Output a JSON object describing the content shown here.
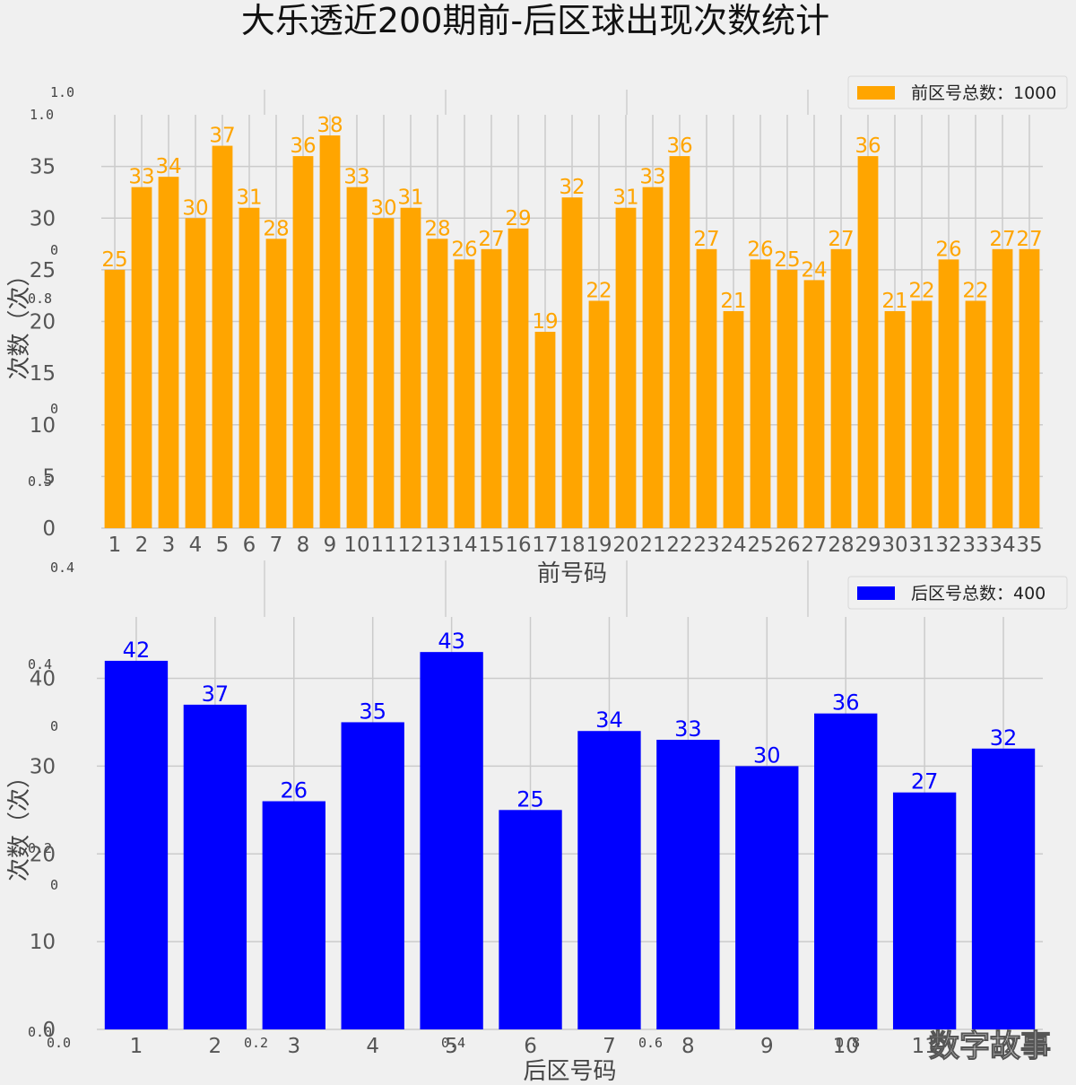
{
  "title": "大乐透近200期前-后区球出现次数统计",
  "watermark": "数字故事",
  "overlay_ticks": {
    "top_y": [
      "1.0",
      "1.0",
      "0.8",
      "0.5",
      "0.4"
    ],
    "mid_y": [
      "0",
      "0",
      "0"
    ],
    "bottom_y": [
      "0.4",
      "0",
      "0.2",
      "0",
      "0.0"
    ],
    "bottom_x": [
      "0.0",
      "0.2",
      "0.4",
      "0.6",
      "0.8"
    ]
  },
  "chart_data": [
    {
      "type": "bar",
      "color": "#ffa500",
      "label_color": "#ffa500",
      "legend": "前区号总数：1000",
      "legend_position": "top-right",
      "xlabel": "前号码",
      "ylabel": "次数（次）",
      "ylim": [
        0,
        40
      ],
      "yticks": [
        0,
        5,
        10,
        15,
        20,
        25,
        30,
        35
      ],
      "grid": true,
      "categories": [
        "1",
        "2",
        "3",
        "4",
        "5",
        "6",
        "7",
        "8",
        "9",
        "10",
        "11",
        "12",
        "13",
        "14",
        "15",
        "16",
        "17",
        "18",
        "19",
        "20",
        "21",
        "22",
        "23",
        "24",
        "25",
        "26",
        "27",
        "28",
        "29",
        "30",
        "31",
        "32",
        "33",
        "34",
        "35"
      ],
      "values": [
        25,
        33,
        34,
        30,
        37,
        31,
        28,
        36,
        38,
        33,
        30,
        31,
        28,
        26,
        27,
        29,
        19,
        32,
        22,
        31,
        33,
        36,
        27,
        21,
        26,
        25,
        24,
        27,
        36,
        21,
        22,
        26,
        22,
        27,
        27
      ]
    },
    {
      "type": "bar",
      "color": "#0000ff",
      "label_color": "#0000ff",
      "legend": "后区号总数：400",
      "legend_position": "top-right",
      "xlabel": "后区号码",
      "ylabel": "次数（次）",
      "ylim": [
        0,
        47
      ],
      "yticks": [
        0,
        10,
        20,
        30,
        40
      ],
      "grid": true,
      "categories": [
        "1",
        "2",
        "3",
        "4",
        "5",
        "6",
        "7",
        "8",
        "9",
        "10",
        "11",
        "12"
      ],
      "values": [
        42,
        37,
        26,
        35,
        43,
        25,
        34,
        33,
        30,
        36,
        27,
        32
      ]
    }
  ]
}
